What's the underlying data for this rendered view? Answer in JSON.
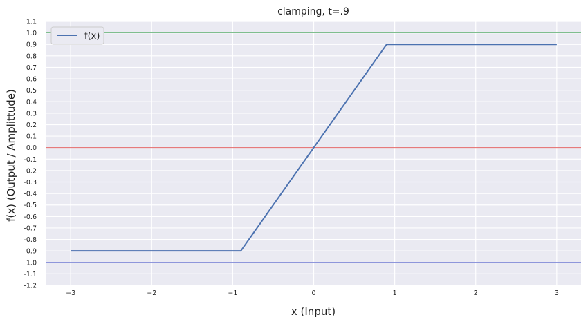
{
  "chart_data": {
    "type": "line",
    "title": "clamping, t=.9",
    "xlabel": "x (Input)",
    "ylabel": "f(x) (Output / Amplittude)",
    "xlim": [
      -3.3,
      3.3
    ],
    "ylim": [
      -1.2,
      1.1
    ],
    "x_ticks": [
      -3,
      -2,
      -1,
      0,
      1,
      2,
      3
    ],
    "x_tick_labels": [
      "−3",
      "−2",
      "−1",
      "0",
      "1",
      "2",
      "3"
    ],
    "y_ticks": [
      -1.2,
      -1.1,
      -1.0,
      -0.9,
      -0.8,
      -0.7,
      -0.6,
      -0.5,
      -0.4,
      -0.3,
      -0.2,
      -0.1,
      0.0,
      0.1,
      0.2,
      0.3,
      0.4,
      0.5,
      0.6,
      0.7,
      0.8,
      0.9,
      1.0,
      1.1
    ],
    "y_tick_labels": [
      "-1.2",
      "-1.1",
      "-1.0",
      "-0.9",
      "-0.8",
      "-0.7",
      "-0.6",
      "-0.5",
      "-0.4",
      "-0.3",
      "-0.2",
      "-0.1",
      "0.0",
      "0.1",
      "0.2",
      "0.3",
      "0.4",
      "0.5",
      "0.6",
      "0.7",
      "0.8",
      "0.9",
      "1.0",
      "1.1"
    ],
    "grid": true,
    "legend_position": "top-left",
    "series": [
      {
        "name": "f(x)",
        "color": "#4c72b0",
        "x": [
          -3.0,
          -0.9,
          0.9,
          3.0
        ],
        "y": [
          -0.9,
          -0.9,
          0.9,
          0.9
        ]
      }
    ],
    "reference_lines": [
      {
        "y": 1.0,
        "color": "#55a868"
      },
      {
        "y": 0.0,
        "color": "#e05050"
      },
      {
        "y": -1.0,
        "color": "#4d5bc7"
      }
    ],
    "background_color": "#eaeaf2"
  }
}
